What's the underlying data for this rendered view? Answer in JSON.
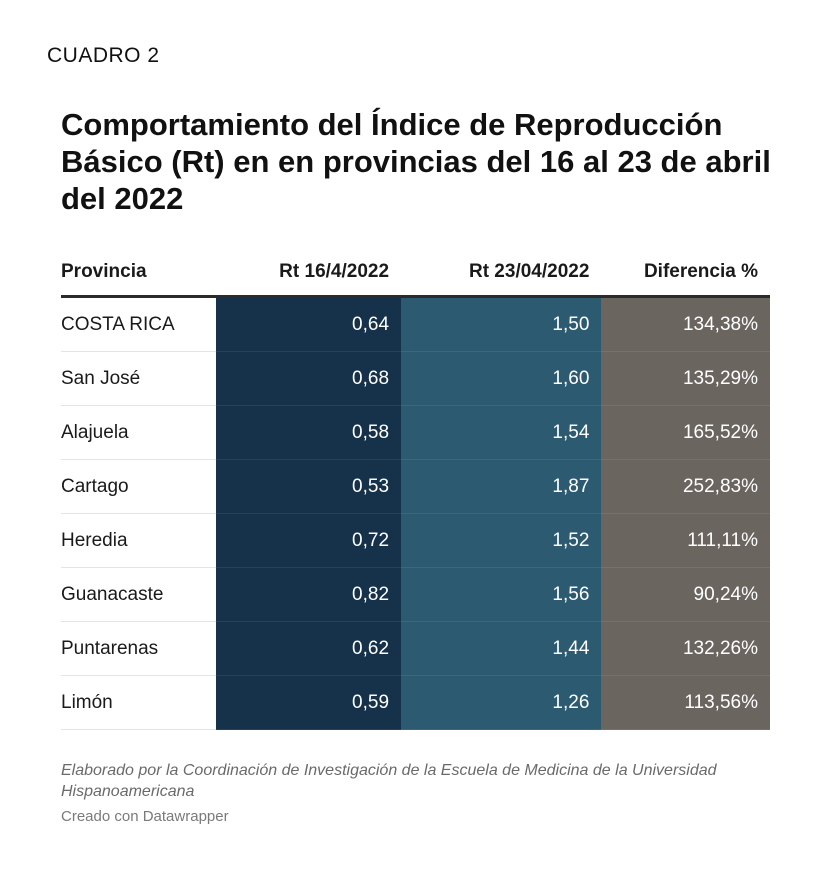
{
  "header": {
    "label": "CUADRO 2",
    "title": "Comportamiento del Índice de Reproducción Básico (Rt) en en provincias del 16 al 23 de abril del 2022"
  },
  "chart_data": {
    "type": "table",
    "columns": [
      "Provincia",
      "Rt 16/4/2022",
      "Rt 23/04/2022",
      "Diferencia %"
    ],
    "rows": [
      [
        "COSTA RICA",
        "0,64",
        "1,50",
        "134,38%"
      ],
      [
        "San José",
        "0,68",
        "1,60",
        "135,29%"
      ],
      [
        "Alajuela",
        "0,58",
        "1,54",
        "165,52%"
      ],
      [
        "Cartago",
        "0,53",
        "1,87",
        "252,83%"
      ],
      [
        "Heredia",
        "0,72",
        "1,52",
        "111,11%"
      ],
      [
        "Guanacaste",
        "0,82",
        "1,56",
        "90,24%"
      ],
      [
        "Puntarenas",
        "0,62",
        "1,44",
        "132,26%"
      ],
      [
        "Limón",
        "0,59",
        "1,26",
        "113,56%"
      ]
    ],
    "column_colors": [
      "#15324a",
      "#2c5a70",
      "#6b6560"
    ]
  },
  "footer": {
    "note": "Elaborado por la Coordinación de Investigación de la Escuela de Medicina de la Universidad Hispanoamericana",
    "credit": "Creado con Datawrapper"
  }
}
